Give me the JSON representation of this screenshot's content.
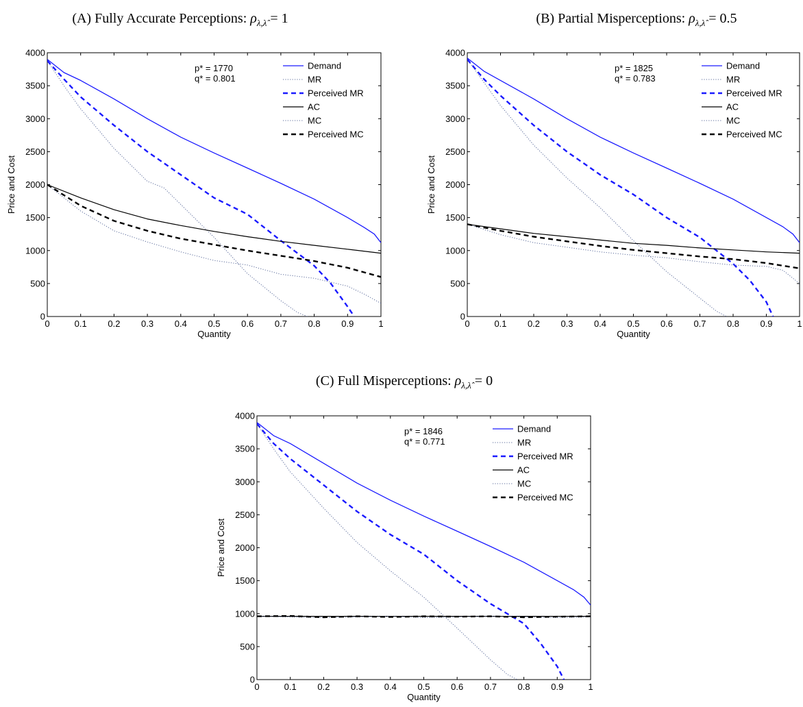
{
  "colors": {
    "blue": "#1a1aff",
    "black": "#000000",
    "mr_gray": "#5a6a9a"
  },
  "legend_labels": [
    "Demand",
    "MR",
    "Perceived MR",
    "AC",
    "MC",
    "Perceived MC"
  ],
  "chart_data": [
    {
      "type": "line",
      "panel_title": "(A) Fully Accurate Perceptions: ρλ,λ̂ = 1",
      "title_prefix": "(A) Fully Accurate Perceptions: ",
      "rho_value": "1",
      "xlabel": "Quantity",
      "ylabel": "Price and Cost",
      "xlim": [
        0,
        1
      ],
      "ylim": [
        0,
        4000
      ],
      "xticks": [
        0,
        0.1,
        0.2,
        0.3,
        0.4,
        0.5,
        0.6,
        0.7,
        0.8,
        0.9,
        1
      ],
      "yticks": [
        0,
        500,
        1000,
        1500,
        2000,
        2500,
        3000,
        3500,
        4000
      ],
      "legend_placement": "top-right",
      "annotation": [
        "p* = 1770",
        "q* = 0.801"
      ],
      "series": [
        {
          "name": "Demand",
          "style": "solid-blue",
          "x": [
            0,
            0.05,
            0.1,
            0.2,
            0.3,
            0.4,
            0.5,
            0.6,
            0.7,
            0.8,
            0.9,
            0.95,
            0.98,
            1
          ],
          "y": [
            3900,
            3700,
            3580,
            3300,
            3000,
            2720,
            2480,
            2250,
            2020,
            1780,
            1500,
            1350,
            1250,
            1120
          ]
        },
        {
          "name": "MR",
          "style": "dotted-gray",
          "x": [
            0,
            0.05,
            0.1,
            0.2,
            0.3,
            0.35,
            0.4,
            0.5,
            0.6,
            0.7,
            0.75,
            0.78
          ],
          "y": [
            3880,
            3500,
            3150,
            2550,
            2050,
            1950,
            1700,
            1200,
            650,
            240,
            60,
            0
          ]
        },
        {
          "name": "Perceived MR",
          "style": "dashed-blue",
          "x": [
            0,
            0.05,
            0.1,
            0.2,
            0.3,
            0.4,
            0.5,
            0.6,
            0.7,
            0.8,
            0.85,
            0.9,
            0.92
          ],
          "y": [
            3880,
            3600,
            3330,
            2900,
            2500,
            2150,
            1800,
            1550,
            1150,
            770,
            500,
            150,
            0
          ]
        },
        {
          "name": "AC",
          "style": "solid-black",
          "x": [
            0,
            0.1,
            0.2,
            0.3,
            0.4,
            0.5,
            0.6,
            0.7,
            0.8,
            0.9,
            1
          ],
          "y": [
            2000,
            1800,
            1620,
            1480,
            1380,
            1290,
            1210,
            1140,
            1080,
            1020,
            960
          ]
        },
        {
          "name": "MC",
          "style": "dotted-gray",
          "x": [
            0,
            0.1,
            0.2,
            0.3,
            0.4,
            0.5,
            0.6,
            0.7,
            0.8,
            0.9,
            0.95,
            1
          ],
          "y": [
            2000,
            1600,
            1300,
            1130,
            980,
            850,
            780,
            640,
            580,
            460,
            340,
            200
          ]
        },
        {
          "name": "Perceived MC",
          "style": "dashed-black",
          "x": [
            0,
            0.1,
            0.2,
            0.3,
            0.4,
            0.5,
            0.6,
            0.7,
            0.8,
            0.9,
            1
          ],
          "y": [
            2000,
            1680,
            1450,
            1300,
            1180,
            1090,
            1000,
            920,
            840,
            740,
            600
          ]
        }
      ]
    },
    {
      "type": "line",
      "panel_title": "(B) Partial Misperceptions: ρλ,λ̂ = 0.5",
      "title_prefix": "(B) Partial Misperceptions: ",
      "rho_value": "0.5",
      "xlabel": "Quantity",
      "ylabel": "Price and Cost",
      "xlim": [
        0,
        1
      ],
      "ylim": [
        0,
        4000
      ],
      "xticks": [
        0,
        0.1,
        0.2,
        0.3,
        0.4,
        0.5,
        0.6,
        0.7,
        0.8,
        0.9,
        1
      ],
      "yticks": [
        0,
        500,
        1000,
        1500,
        2000,
        2500,
        3000,
        3500,
        4000
      ],
      "legend_placement": "top-right",
      "annotation": [
        "p* = 1825",
        "q* = 0.783"
      ],
      "series": [
        {
          "name": "Demand",
          "style": "solid-blue",
          "x": [
            0,
            0.05,
            0.1,
            0.2,
            0.3,
            0.4,
            0.5,
            0.6,
            0.7,
            0.8,
            0.9,
            0.95,
            0.98,
            1
          ],
          "y": [
            3920,
            3720,
            3580,
            3300,
            3000,
            2720,
            2480,
            2250,
            2020,
            1780,
            1500,
            1360,
            1250,
            1120
          ]
        },
        {
          "name": "MR",
          "style": "dotted-gray",
          "x": [
            0,
            0.05,
            0.1,
            0.2,
            0.3,
            0.4,
            0.5,
            0.6,
            0.7,
            0.75,
            0.78
          ],
          "y": [
            3900,
            3550,
            3200,
            2600,
            2100,
            1650,
            1150,
            680,
            280,
            80,
            0
          ]
        },
        {
          "name": "Perceived MR",
          "style": "dashed-blue",
          "x": [
            0,
            0.05,
            0.1,
            0.2,
            0.3,
            0.4,
            0.5,
            0.6,
            0.7,
            0.8,
            0.85,
            0.9,
            0.92
          ],
          "y": [
            3900,
            3600,
            3350,
            2900,
            2500,
            2150,
            1850,
            1500,
            1200,
            800,
            550,
            220,
            0
          ]
        },
        {
          "name": "AC",
          "style": "solid-black",
          "x": [
            0,
            0.1,
            0.2,
            0.3,
            0.4,
            0.5,
            0.6,
            0.7,
            0.8,
            0.9,
            1
          ],
          "y": [
            1400,
            1330,
            1260,
            1210,
            1160,
            1110,
            1080,
            1040,
            1010,
            980,
            960
          ]
        },
        {
          "name": "MC",
          "style": "dotted-gray",
          "x": [
            0,
            0.1,
            0.2,
            0.3,
            0.4,
            0.5,
            0.6,
            0.7,
            0.8,
            0.9,
            0.95,
            1
          ],
          "y": [
            1400,
            1240,
            1120,
            1050,
            980,
            930,
            890,
            830,
            780,
            760,
            700,
            500
          ]
        },
        {
          "name": "Perceived MC",
          "style": "dashed-black",
          "x": [
            0,
            0.1,
            0.2,
            0.3,
            0.4,
            0.5,
            0.6,
            0.7,
            0.8,
            0.9,
            1
          ],
          "y": [
            1400,
            1300,
            1210,
            1140,
            1070,
            1010,
            960,
            910,
            870,
            810,
            730
          ]
        }
      ]
    },
    {
      "type": "line",
      "panel_title": "(C) Full Misperceptions: ρλ,λ̂ = 0",
      "title_prefix": "(C) Full Misperceptions: ",
      "rho_value": "0",
      "xlabel": "Quantity",
      "ylabel": "Price and Cost",
      "xlim": [
        0,
        1
      ],
      "ylim": [
        0,
        4000
      ],
      "xticks": [
        0,
        0.1,
        0.2,
        0.3,
        0.4,
        0.5,
        0.6,
        0.7,
        0.8,
        0.9,
        1
      ],
      "yticks": [
        0,
        500,
        1000,
        1500,
        2000,
        2500,
        3000,
        3500,
        4000
      ],
      "legend_placement": "top-right",
      "annotation": [
        "p* = 1846",
        "q* = 0.771"
      ],
      "series": [
        {
          "name": "Demand",
          "style": "solid-blue",
          "x": [
            0,
            0.05,
            0.1,
            0.2,
            0.3,
            0.4,
            0.5,
            0.6,
            0.7,
            0.8,
            0.9,
            0.95,
            0.98,
            1
          ],
          "y": [
            3900,
            3700,
            3580,
            3280,
            2980,
            2720,
            2480,
            2250,
            2020,
            1780,
            1500,
            1360,
            1250,
            1130
          ]
        },
        {
          "name": "MR",
          "style": "dotted-gray",
          "x": [
            0,
            0.05,
            0.1,
            0.2,
            0.3,
            0.4,
            0.5,
            0.6,
            0.7,
            0.75,
            0.78
          ],
          "y": [
            3880,
            3500,
            3150,
            2600,
            2080,
            1650,
            1250,
            780,
            300,
            80,
            0
          ]
        },
        {
          "name": "Perceived MR",
          "style": "dashed-blue",
          "x": [
            0,
            0.05,
            0.1,
            0.2,
            0.3,
            0.4,
            0.5,
            0.6,
            0.7,
            0.8,
            0.85,
            0.9,
            0.92
          ],
          "y": [
            3880,
            3580,
            3350,
            2950,
            2550,
            2200,
            1900,
            1500,
            1150,
            850,
            550,
            200,
            0
          ]
        },
        {
          "name": "AC",
          "style": "solid-black",
          "x": [
            0,
            0.1,
            0.2,
            0.3,
            0.4,
            0.5,
            0.6,
            0.7,
            0.8,
            0.9,
            1
          ],
          "y": [
            960,
            960,
            960,
            960,
            960,
            960,
            960,
            960,
            960,
            960,
            960
          ]
        },
        {
          "name": "MC",
          "style": "dotted-gray",
          "x": [
            0,
            0.1,
            0.2,
            0.3,
            0.4,
            0.5,
            0.6,
            0.7,
            0.8,
            0.9,
            1
          ],
          "y": [
            960,
            950,
            940,
            950,
            960,
            940,
            950,
            960,
            950,
            940,
            950
          ]
        },
        {
          "name": "Perceived MC",
          "style": "dashed-black",
          "x": [
            0,
            0.1,
            0.2,
            0.3,
            0.4,
            0.5,
            0.6,
            0.7,
            0.8,
            0.9,
            1
          ],
          "y": [
            960,
            965,
            945,
            960,
            950,
            960,
            955,
            960,
            945,
            955,
            960
          ]
        }
      ]
    }
  ]
}
